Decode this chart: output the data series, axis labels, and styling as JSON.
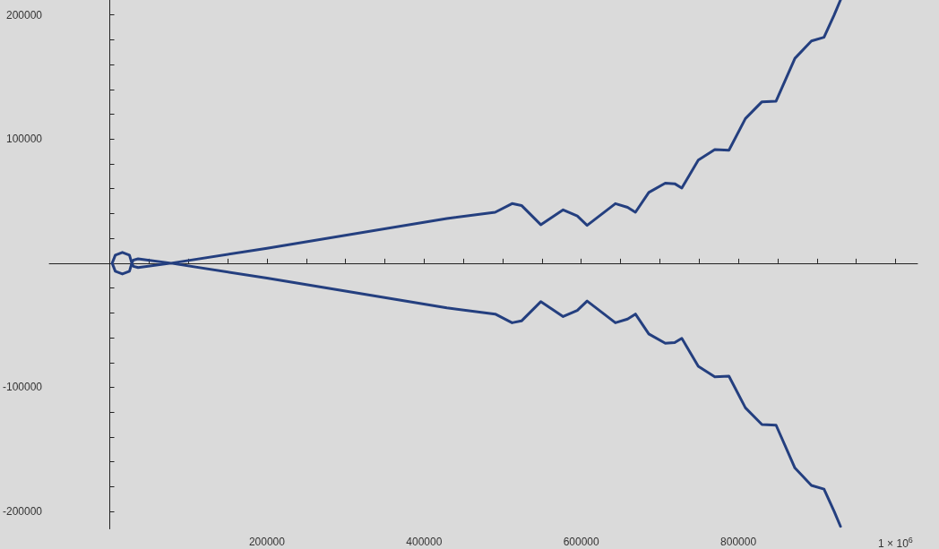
{
  "chart_data": {
    "type": "line",
    "x": [
      930000,
      922000,
      909000,
      893000,
      872000,
      848000,
      830000,
      809000,
      788000,
      770000,
      749000,
      728000,
      719000,
      707000,
      686000,
      669000,
      659000,
      643500,
      607500,
      595000,
      577000,
      548500,
      524000,
      512000,
      490500,
      429000,
      200000,
      78000,
      36000,
      30000,
      28000,
      25000,
      16000,
      7000,
      3000,
      7000,
      16000,
      25000,
      28000,
      30000,
      36000,
      78000,
      200000,
      429000,
      490500,
      512000,
      524000,
      548500,
      577000,
      595000,
      607500,
      643500,
      659000,
      669000,
      686000,
      707000,
      719000,
      728000,
      749000,
      770000,
      788000,
      809000,
      830000,
      848000,
      872000,
      893000,
      909000,
      922000,
      930000
    ],
    "values": [
      -212000,
      -200000,
      -182000,
      -179000,
      -165000,
      -130500,
      -130000,
      -116500,
      -91000,
      -91500,
      -83000,
      -60500,
      -64000,
      -64500,
      -57000,
      -41000,
      -45000,
      -48000,
      -30500,
      -38000,
      -43000,
      -31000,
      -46500,
      -48000,
      -41000,
      -36000,
      -12000,
      0,
      3500,
      2500,
      0,
      6500,
      8700,
      6500,
      0,
      -6500,
      -8700,
      -6500,
      0,
      -2500,
      -3500,
      0,
      12000,
      36000,
      41000,
      48000,
      46500,
      31000,
      43000,
      38000,
      30500,
      48000,
      45000,
      41000,
      57000,
      64500,
      64000,
      60500,
      83000,
      91500,
      91000,
      116500,
      130000,
      130500,
      165000,
      179000,
      182000,
      200000,
      212000
    ],
    "color": "#243f7f",
    "xlim": [
      -77000,
      1028000
    ],
    "ylim": [
      -214000,
      212000
    ],
    "xticks": [
      {
        "value": 50000,
        "label": null
      },
      {
        "value": 100000,
        "label": null
      },
      {
        "value": 150000,
        "label": null
      },
      200000,
      {
        "value": 250000,
        "label": null
      },
      {
        "value": 300000,
        "label": null
      },
      {
        "value": 350000,
        "label": null
      },
      400000,
      {
        "value": 450000,
        "label": null
      },
      {
        "value": 500000,
        "label": null
      },
      {
        "value": 550000,
        "label": null
      },
      600000,
      {
        "value": 650000,
        "label": null
      },
      {
        "value": 700000,
        "label": null
      },
      {
        "value": 750000,
        "label": null
      },
      800000,
      {
        "value": 850000,
        "label": null
      },
      {
        "value": 900000,
        "label": null
      },
      {
        "value": 950000,
        "label": null
      },
      {
        "value": 1000000,
        "label": "1 × 10$^{6}$"
      }
    ],
    "yticks": [
      -200000,
      {
        "value": -180000,
        "label": null
      },
      {
        "value": -160000,
        "label": null
      },
      {
        "value": -140000,
        "label": null
      },
      {
        "value": -120000,
        "label": null
      },
      -100000,
      {
        "value": -80000,
        "label": null
      },
      {
        "value": -60000,
        "label": null
      },
      {
        "value": -40000,
        "label": null
      },
      {
        "value": -20000,
        "label": null
      },
      {
        "value": 20000,
        "label": null
      },
      {
        "value": 40000,
        "label": null
      },
      {
        "value": 60000,
        "label": null
      },
      {
        "value": 80000,
        "label": null
      },
      100000,
      {
        "value": 120000,
        "label": null
      },
      {
        "value": 140000,
        "label": null
      },
      {
        "value": 160000,
        "label": null
      },
      {
        "value": 180000,
        "label": null
      },
      200000
    ],
    "marker": "none",
    "line_style": "solid"
  }
}
